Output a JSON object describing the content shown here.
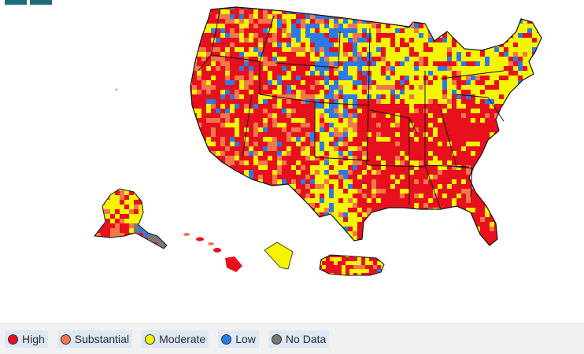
{
  "legend": [
    {
      "label": "High",
      "color": "#e8101c"
    },
    {
      "label": "Substantial",
      "color": "#f2784b"
    },
    {
      "label": "Moderate",
      "color": "#f5f500"
    },
    {
      "label": "Low",
      "color": "#2c7be5"
    },
    {
      "label": "No Data",
      "color": "#777777"
    }
  ],
  "palette": {
    "high": "#e8101c",
    "substantial": "#f2784b",
    "moderate": "#f5f500",
    "low": "#2c7be5",
    "nodata": "#777777",
    "border": "#111111"
  }
}
